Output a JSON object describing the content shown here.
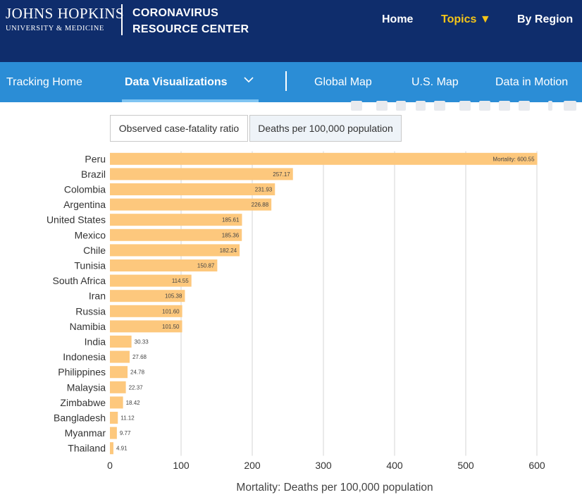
{
  "header": {
    "logo_line1": "JOHNS HOPKINS",
    "logo_line2": "UNIVERSITY & MEDICINE",
    "site_title_line1": "CORONAVIRUS",
    "site_title_line2": "RESOURCE CENTER",
    "nav": {
      "home": "Home",
      "topics": "Topics ▼",
      "by_region": "By Region"
    },
    "topics_color": "#f5c518",
    "background": "#0f2d6c"
  },
  "subnav": {
    "tracking_home": "Tracking Home",
    "data_visualizations": "Data Visualizations",
    "global_map": "Global Map",
    "us_map": "U.S. Map",
    "data_in_motion": "Data in Motion",
    "background": "#2b8dd6"
  },
  "tabs": {
    "cfr": "Observed case-fatality ratio",
    "deaths": "Deaths per 100,000 population",
    "active": "deaths"
  },
  "chart_data": {
    "type": "bar",
    "orientation": "horizontal",
    "categories": [
      "Peru",
      "Brazil",
      "Colombia",
      "Argentina",
      "United States",
      "Mexico",
      "Chile",
      "Tunisia",
      "South Africa",
      "Iran",
      "Russia",
      "Namibia",
      "India",
      "Indonesia",
      "Philippines",
      "Malaysia",
      "Zimbabwe",
      "Bangladesh",
      "Myanmar",
      "Thailand"
    ],
    "values": [
      600.55,
      257.17,
      231.93,
      226.88,
      185.61,
      185.36,
      182.24,
      150.87,
      114.55,
      105.38,
      101.6,
      101.5,
      30.33,
      27.68,
      24.78,
      22.37,
      18.42,
      11.12,
      9.77,
      4.91
    ],
    "value_labels": [
      "Mortality: 600.55",
      "257.17",
      "231.93",
      "226.88",
      "185.61",
      "185.36",
      "182.24",
      "150.87",
      "114.55",
      "105.38",
      "101.60",
      "101.50",
      "30.33",
      "27.68",
      "24.78",
      "22.37",
      "18.42",
      "11.12",
      "9.77",
      "4.91"
    ],
    "xlabel": "Mortality: Deaths per 100,000 population",
    "xlim": [
      0,
      600
    ],
    "xticks": [
      "0",
      "100",
      "200",
      "300",
      "400",
      "500",
      "600"
    ],
    "grid": true,
    "bar_color": "#fdc87d"
  }
}
